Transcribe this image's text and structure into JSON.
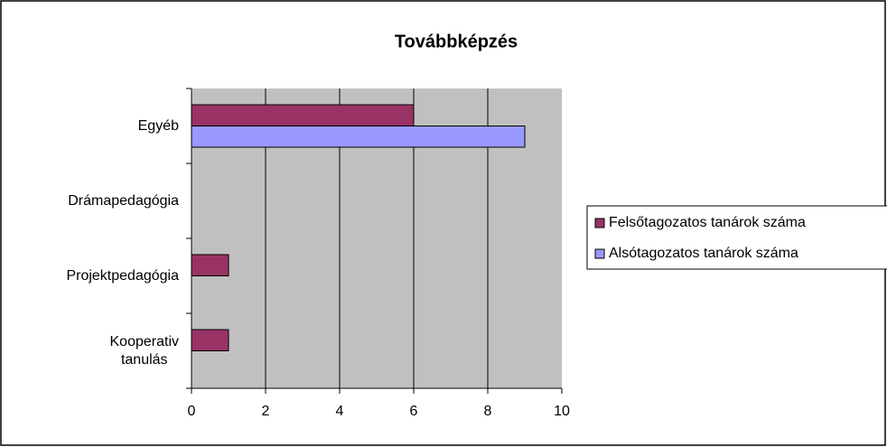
{
  "chart_data": {
    "type": "bar",
    "orientation": "horizontal",
    "title": "Továbbképzés",
    "categories": [
      "Kooperativ tanulás",
      "Projektpedagógia",
      "Drámapedagógia",
      "Egyéb"
    ],
    "series": [
      {
        "name": "Felsőtagozatos tanárok száma",
        "color": "#993366",
        "values": [
          1,
          1,
          0,
          6
        ]
      },
      {
        "name": "Alsótagozatos tanárok száma",
        "color": "#9999ff",
        "values": [
          0,
          0,
          0,
          9
        ]
      }
    ],
    "xlim": [
      0,
      10
    ],
    "xticks": [
      0,
      2,
      4,
      6,
      8,
      10
    ],
    "grid": true,
    "legend": "right"
  }
}
